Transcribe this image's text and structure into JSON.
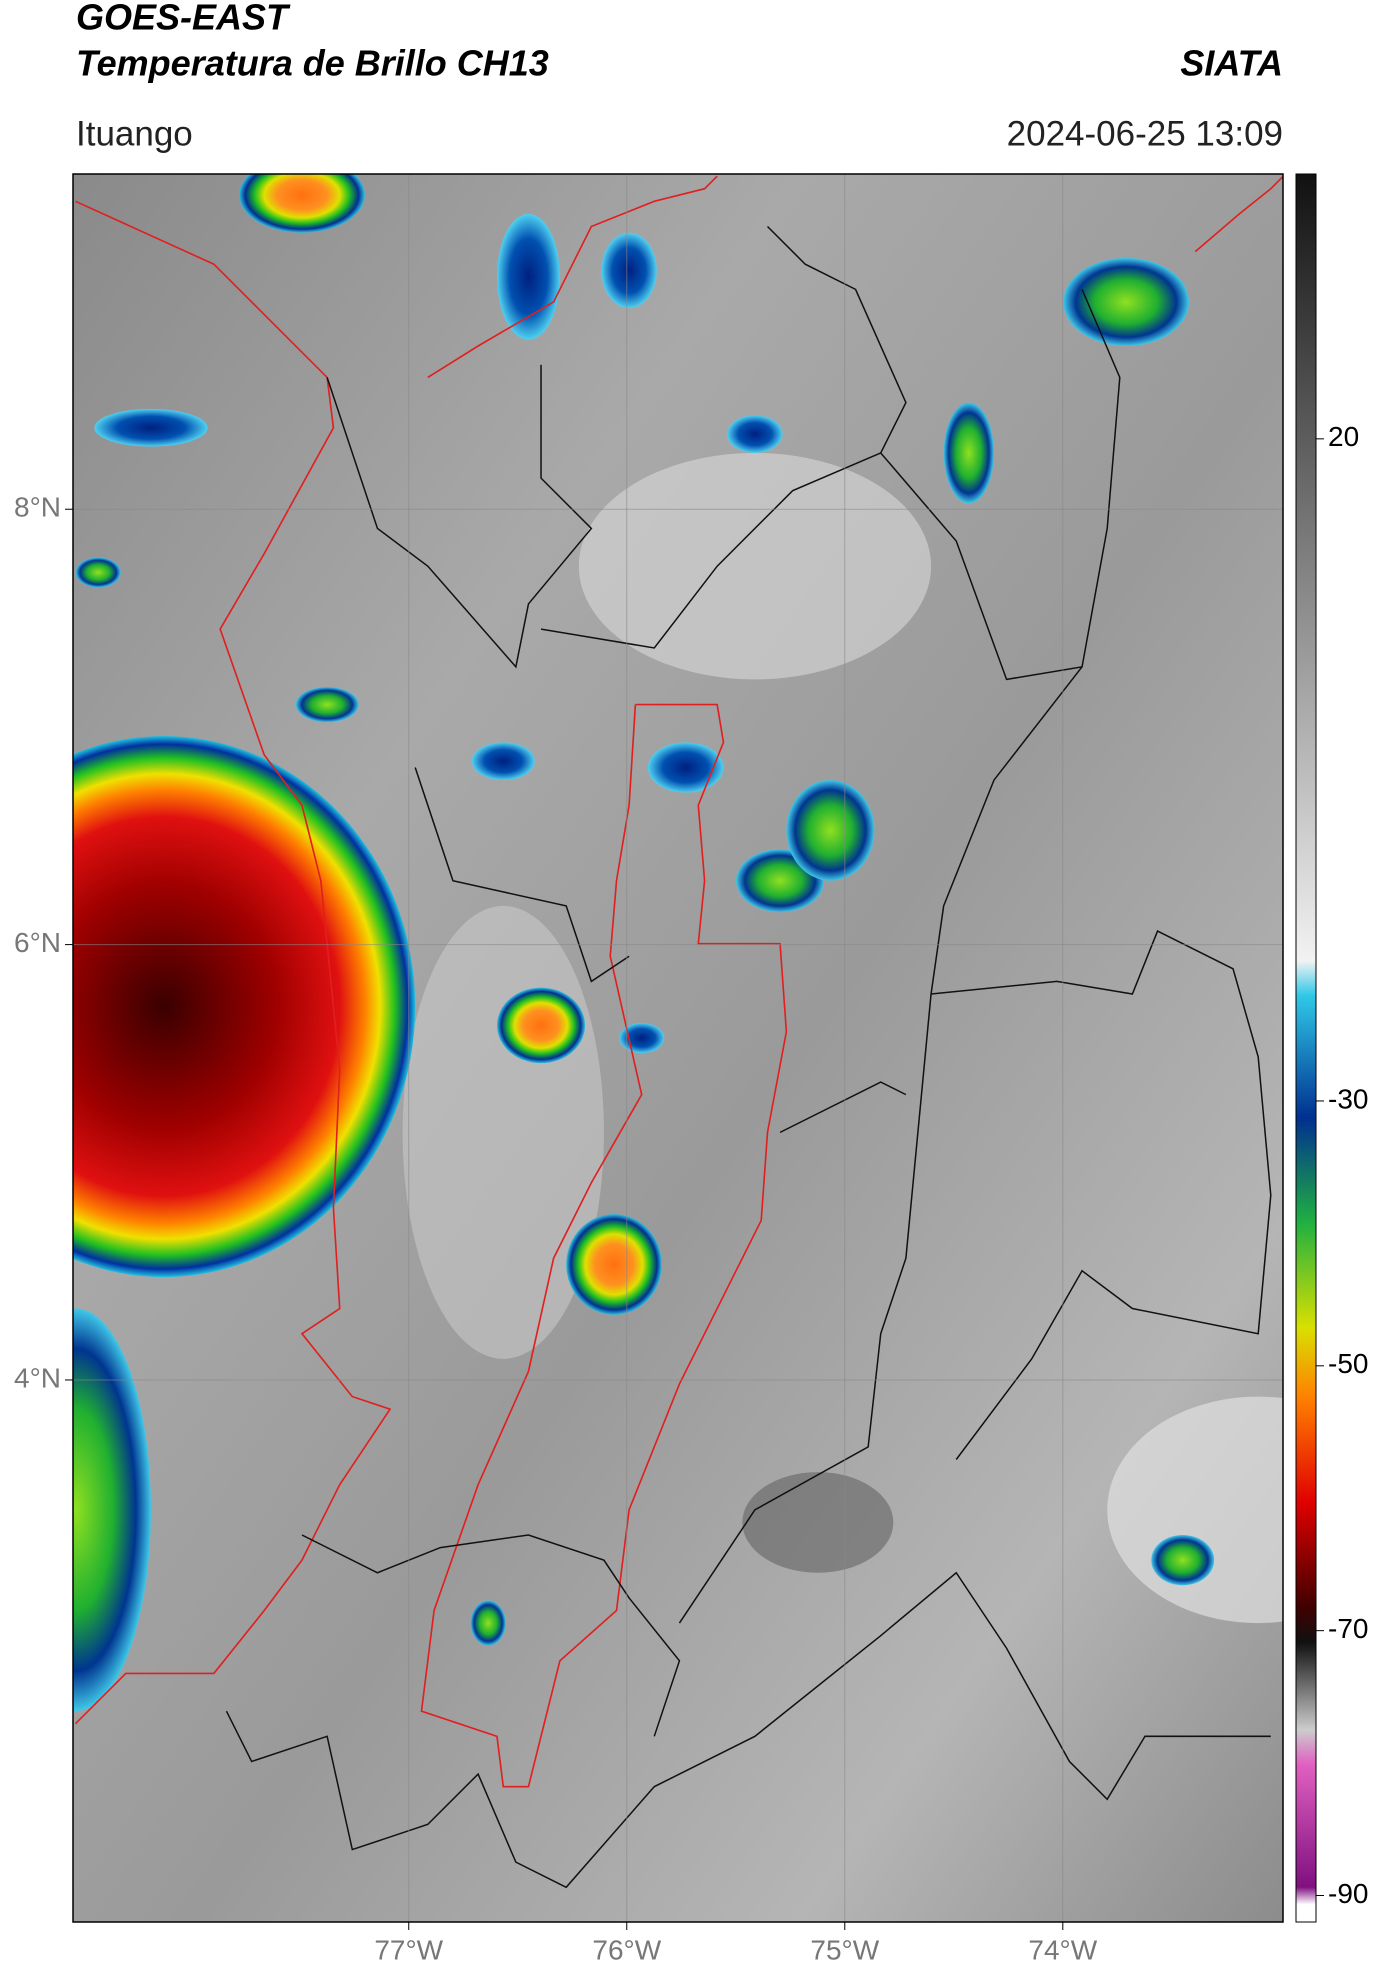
{
  "header": {
    "satellite": "GOES-EAST",
    "product": "Temperatura de Brillo CH13",
    "agency": "SIATA",
    "location": "Ituango",
    "timestamp": "2024-06-25 13:09"
  },
  "chart_data": {
    "type": "map",
    "xlim": [
      -78.54,
      -72.99
    ],
    "ylim": [
      1.51,
      9.54
    ],
    "xticks": [
      {
        "value": -77,
        "label": "77°W"
      },
      {
        "value": -76,
        "label": "76°W"
      },
      {
        "value": -75,
        "label": "75°W"
      },
      {
        "value": -74,
        "label": "74°W"
      }
    ],
    "yticks": [
      {
        "value": 8,
        "label": "8°N"
      },
      {
        "value": 6,
        "label": "6°N"
      },
      {
        "value": 4,
        "label": "4°N"
      }
    ],
    "grid": true,
    "colorbar": {
      "lim": [
        -92,
        40
      ],
      "ticks": [
        20,
        -30,
        -50,
        -70,
        -90
      ]
    }
  }
}
